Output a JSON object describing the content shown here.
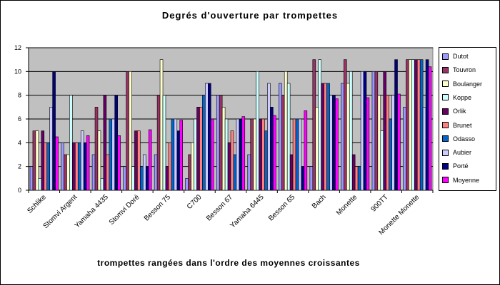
{
  "chart_data": {
    "type": "bar",
    "title": "Degrés d'ouverture par trompettes",
    "xlabel": "trompettes rangées dans l'ordre des moyennes croissantes",
    "ylabel": "",
    "ylim": [
      0,
      12
    ],
    "yticks": [
      0,
      2,
      4,
      6,
      8,
      10,
      12
    ],
    "grid": true,
    "legend_position": "right",
    "plot_background": "#c0c0c0",
    "categories": [
      "Schlike",
      "Stomvi Argent",
      "Yamaha 4435",
      "Stomvi Doré",
      "Besson 75",
      "C700",
      "Besson 67",
      "Yamaha 6445",
      "Besson 65",
      "Bach",
      "Monette",
      "900TT",
      "Monette Monette"
    ],
    "series": [
      {
        "name": "Dutot",
        "color": "#9999ff",
        "values": [
          2,
          4,
          3,
          2,
          3,
          1,
          8,
          3,
          9,
          2,
          9,
          10,
          7
        ]
      },
      {
        "name": "Touvron",
        "color": "#993366",
        "values": [
          5,
          3,
          7,
          10,
          8,
          3,
          8,
          6,
          8,
          11,
          11,
          10,
          11
        ]
      },
      {
        "name": "Boulanger",
        "color": "#ffffcc",
        "values": [
          5,
          3,
          5,
          10,
          11,
          4,
          7,
          6,
          10,
          7,
          9,
          8,
          11
        ]
      },
      {
        "name": "Koppe",
        "color": "#ccffff",
        "values": [
          1,
          8,
          1,
          2,
          8,
          6,
          6,
          10,
          9,
          11,
          10,
          5,
          11
        ]
      },
      {
        "name": "Orlik",
        "color": "#660066",
        "values": [
          5,
          4,
          8,
          5,
          2,
          7,
          4,
          6,
          3,
          9,
          3,
          10,
          11
        ]
      },
      {
        "name": "Brunet",
        "color": "#ff8080",
        "values": [
          4,
          4,
          3,
          5,
          4,
          7,
          5,
          6,
          6,
          9,
          2,
          8,
          11
        ]
      },
      {
        "name": "Odasso",
        "color": "#0066cc",
        "values": [
          4,
          4,
          6,
          2,
          6,
          8,
          3,
          5,
          6,
          9,
          2,
          6,
          11
        ]
      },
      {
        "name": "Aubier",
        "color": "#ccccff",
        "values": [
          7,
          5,
          6,
          3,
          6,
          9,
          6,
          9,
          6,
          8,
          10,
          8,
          7
        ]
      },
      {
        "name": "Porté",
        "color": "#000080",
        "values": [
          10,
          4,
          8,
          2,
          5,
          9,
          6,
          7,
          2,
          8,
          10,
          11,
          11
        ]
      },
      {
        "name": "Moyenne",
        "color": "#ff00ff",
        "values": [
          4.5,
          4.6,
          4.6,
          5.1,
          5.9,
          6.0,
          6.2,
          6.3,
          6.7,
          7.7,
          7.8,
          8.1,
          10.4
        ]
      }
    ]
  }
}
